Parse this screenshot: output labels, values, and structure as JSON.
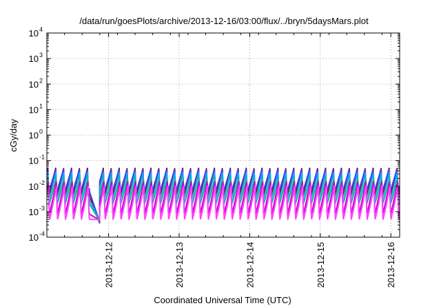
{
  "chart_data": {
    "type": "line",
    "title": "/data/run/goesPlots/archive/2013-12-16/03:00/flux/../bryn/5daysMars.plot",
    "xlabel": "Coordinated Universal Time (UTC)",
    "ylabel": "cGy/day",
    "yscale": "log",
    "ylim": [
      0.0001,
      10000
    ],
    "xlim": [
      "2013-12-11T03:00",
      "2013-12-16T03:00"
    ],
    "x_ticks": [
      "2013-12-12",
      "2013-12-13",
      "2013-12-14",
      "2013-12-15",
      "2013-12-16"
    ],
    "y_ticks": [
      {
        "base": "10",
        "exp": "4"
      },
      {
        "base": "10",
        "exp": "3"
      },
      {
        "base": "10",
        "exp": "2"
      },
      {
        "base": "10",
        "exp": "1"
      },
      {
        "base": "10",
        "exp": "0"
      },
      {
        "base": "10",
        "exp": "-1"
      },
      {
        "base": "10",
        "exp": "-2"
      },
      {
        "base": "10",
        "exp": "-3"
      },
      {
        "base": "10",
        "exp": "-4"
      }
    ],
    "grid": true,
    "oscillation": {
      "first_peak": "2013-12-11T03:15",
      "period_hours": 2.7,
      "dip_start": "2013-12-11T17:30",
      "dip_end": "2013-12-11T21:00",
      "dip_min": 0.00035
    },
    "series": [
      {
        "color": "#a00000",
        "peak": 0.05,
        "trough": 0.004,
        "phase_hours": 0.05
      },
      {
        "color": "#3344ee",
        "peak": 0.045,
        "trough": 0.006,
        "phase_hours": 0.0
      },
      {
        "color": "#1fa0f0",
        "peak": 0.035,
        "trough": 0.003,
        "phase_hours": 0.12
      },
      {
        "color": "#00b89a",
        "peak": 0.02,
        "trough": 0.002,
        "phase_hours": 0.2
      },
      {
        "color": "#cc00cc",
        "peak": 0.015,
        "trough": 0.0008,
        "phase_hours": 0.28
      },
      {
        "color": "#ff44ff",
        "peak": 0.01,
        "trough": 0.0005,
        "phase_hours": 0.35
      }
    ]
  }
}
